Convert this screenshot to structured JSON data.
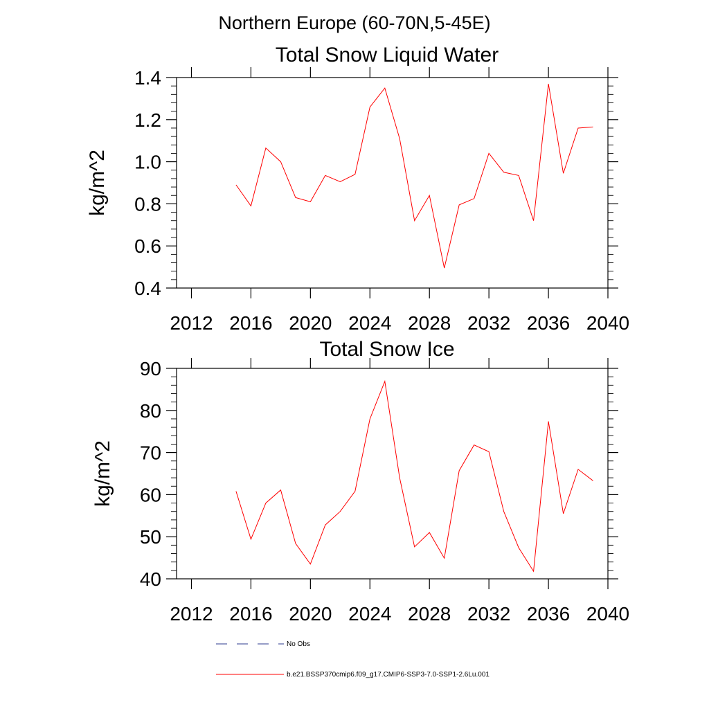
{
  "suptitle": "Northern Europe (60-70N,5-45E)",
  "chart_data": [
    {
      "type": "line",
      "title": "Total Snow Liquid Water",
      "ylabel": "kg/m^2",
      "xlim": [
        2011,
        2040
      ],
      "ylim": [
        0.4,
        1.4
      ],
      "xticks": [
        2012,
        2016,
        2020,
        2024,
        2028,
        2032,
        2036,
        2040
      ],
      "xtick_labels": [
        "2012",
        "2016",
        "2020",
        "2024",
        "2028",
        "2032",
        "2036",
        "2040"
      ],
      "yticks": [
        0.4,
        0.6,
        0.8,
        1.0,
        1.2,
        1.4
      ],
      "ytick_labels": [
        "0.4",
        "0.6",
        "0.8",
        "1.0",
        "1.2",
        "1.4"
      ],
      "x": [
        2015,
        2016,
        2017,
        2018,
        2019,
        2020,
        2021,
        2022,
        2023,
        2024,
        2025,
        2026,
        2027,
        2028,
        2029,
        2030,
        2031,
        2032,
        2033,
        2034,
        2035,
        2036,
        2037,
        2038,
        2039
      ],
      "series": [
        {
          "name": "b.e21.BSSP370cmip6.f09_g17.CMIP6-SSP3-7.0-SSP1-2.6Lu.001",
          "color": "#ff0000",
          "values": [
            0.89,
            0.79,
            1.065,
            1.0,
            0.83,
            0.81,
            0.935,
            0.905,
            0.94,
            1.26,
            1.35,
            1.11,
            0.72,
            0.84,
            0.495,
            0.795,
            0.825,
            1.04,
            0.95,
            0.935,
            0.72,
            1.37,
            0.945,
            1.16,
            1.165
          ]
        }
      ]
    },
    {
      "type": "line",
      "title": "Total Snow Ice",
      "ylabel": "kg/m^2",
      "xlim": [
        2011,
        2040
      ],
      "ylim": [
        40,
        90
      ],
      "xticks": [
        2012,
        2016,
        2020,
        2024,
        2028,
        2032,
        2036,
        2040
      ],
      "xtick_labels": [
        "2012",
        "2016",
        "2020",
        "2024",
        "2028",
        "2032",
        "2036",
        "2040"
      ],
      "yticks": [
        40,
        50,
        60,
        70,
        80,
        90
      ],
      "ytick_labels": [
        "40",
        "50",
        "60",
        "70",
        "80",
        "90"
      ],
      "x": [
        2015,
        2016,
        2017,
        2018,
        2019,
        2020,
        2021,
        2022,
        2023,
        2024,
        2025,
        2026,
        2027,
        2028,
        2029,
        2030,
        2031,
        2032,
        2033,
        2034,
        2035,
        2036,
        2037,
        2038,
        2039
      ],
      "series": [
        {
          "name": "b.e21.BSSP370cmip6.f09_g17.CMIP6-SSP3-7.0-SSP1-2.6Lu.001",
          "color": "#ff0000",
          "values": [
            60.8,
            49.4,
            58.0,
            61.1,
            48.4,
            43.5,
            52.8,
            56.0,
            60.8,
            78.0,
            86.9,
            64.0,
            47.6,
            51.0,
            44.9,
            65.7,
            71.8,
            70.2,
            56.0,
            47.4,
            41.8,
            77.4,
            55.5,
            66.0,
            63.3
          ]
        }
      ]
    }
  ],
  "legend": {
    "placement": "bottom",
    "entries": [
      {
        "label": "No Obs",
        "color": "#2b3a8c",
        "style": "dashed"
      },
      {
        "label": "b.e21.BSSP370cmip6.f09_g17.CMIP6-SSP3-7.0-SSP1-2.6Lu.001",
        "color": "#ff0000",
        "style": "solid"
      }
    ]
  }
}
